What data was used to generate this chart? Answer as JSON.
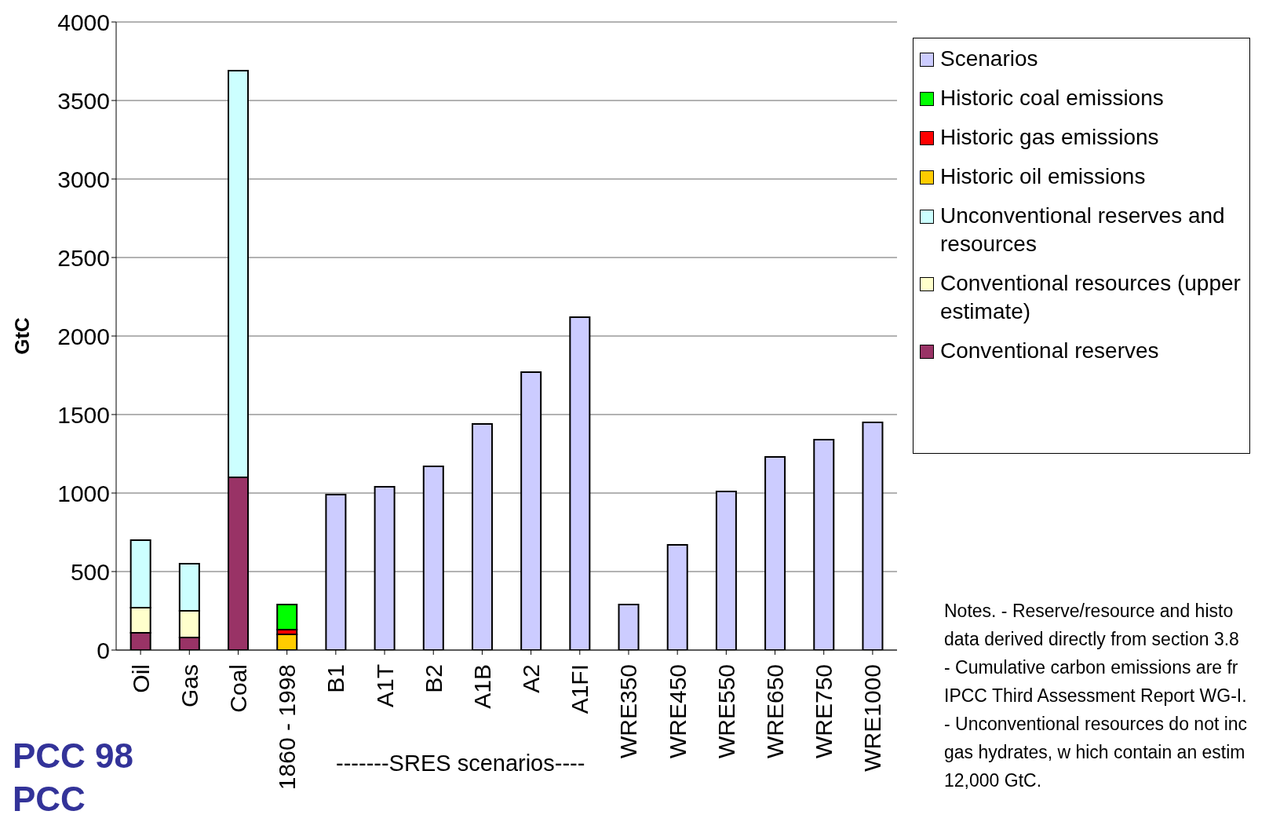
{
  "chart_data": {
    "type": "bar",
    "stacked": true,
    "ylabel": "GtC",
    "categories": [
      "Oil",
      "Gas",
      "Coal",
      "1860 - 1998",
      "B1",
      "A1T",
      "B2",
      "A1B",
      "A2",
      "A1FI",
      "WRE350",
      "WRE450",
      "WRE550",
      "WRE650",
      "WRE750",
      "WRE1000"
    ],
    "series": [
      {
        "name": "Conventional reserves",
        "color": "#993366",
        "values": [
          110,
          80,
          1100,
          null,
          null,
          null,
          null,
          null,
          null,
          null,
          null,
          null,
          null,
          null,
          null,
          null
        ]
      },
      {
        "name": "Conventional resources (upper estimate)",
        "color": "#ffffcc",
        "values": [
          160,
          170,
          null,
          null,
          null,
          null,
          null,
          null,
          null,
          null,
          null,
          null,
          null,
          null,
          null,
          null
        ]
      },
      {
        "name": "Unconventional reserves and resources",
        "color": "#ccffff",
        "values": [
          430,
          300,
          2590,
          null,
          null,
          null,
          null,
          null,
          null,
          null,
          null,
          null,
          null,
          null,
          null,
          null
        ]
      },
      {
        "name": "Historic oil emissions",
        "color": "#ffcc00",
        "values": [
          null,
          null,
          null,
          100,
          null,
          null,
          null,
          null,
          null,
          null,
          null,
          null,
          null,
          null,
          null,
          null
        ]
      },
      {
        "name": "Historic gas emissions",
        "color": "#ff0000",
        "values": [
          null,
          null,
          null,
          30,
          null,
          null,
          null,
          null,
          null,
          null,
          null,
          null,
          null,
          null,
          null,
          null
        ]
      },
      {
        "name": "Historic coal emissions",
        "color": "#00ff00",
        "values": [
          null,
          null,
          null,
          160,
          null,
          null,
          null,
          null,
          null,
          null,
          null,
          null,
          null,
          null,
          null,
          null
        ]
      },
      {
        "name": "Scenarios",
        "color": "#ccccff",
        "values": [
          null,
          null,
          null,
          null,
          990,
          1040,
          1170,
          1440,
          1770,
          2120,
          290,
          670,
          1010,
          1230,
          1340,
          1450
        ]
      }
    ],
    "ylim": [
      0,
      4000
    ],
    "yticks": [
      0,
      500,
      1000,
      1500,
      2000,
      2500,
      3000,
      3500,
      4000
    ],
    "grid": "y",
    "legend": "right",
    "annotations": [
      "-------SRES scenarios----",
      "PCC 98",
      "PCC",
      "Notes. - Reserve/resource and histo",
      "data derived directly from section 3.8",
      "-  Cumulative carbon emissions are fr",
      "IPCC Third Assessment Report WG-I.",
      "- Unconventional resources do not inc",
      "gas hydrates, w hich contain an estim",
      "12,000 GtC."
    ]
  }
}
